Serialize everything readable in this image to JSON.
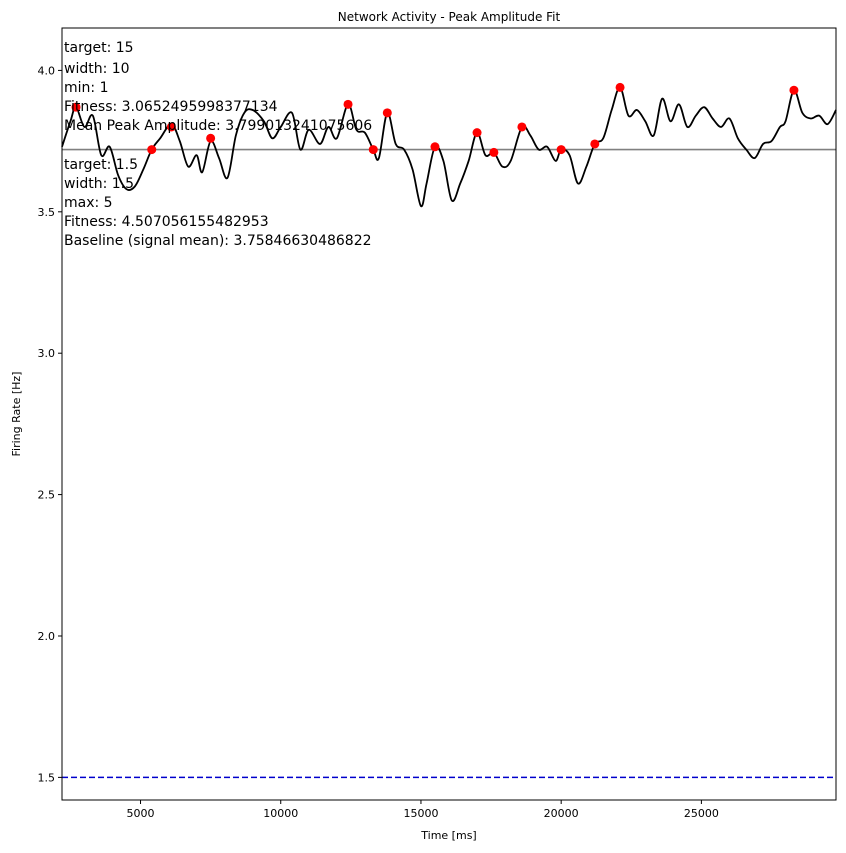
{
  "chart_data": {
    "type": "line",
    "title": "Network Activity - Peak Amplitude Fit",
    "xlabel": "Time [ms]",
    "ylabel": "Firing Rate [Hz]",
    "xlim": [
      2200,
      29800
    ],
    "ylim": [
      1.42,
      4.15
    ],
    "xticks": [
      5000,
      10000,
      15000,
      20000,
      25000
    ],
    "yticks": [
      1.5,
      2.0,
      2.5,
      3.0,
      3.5,
      4.0
    ],
    "grid": false,
    "series": [
      {
        "x": [
          2200,
          2500,
          2700,
          3000,
          3300,
          3600,
          3900,
          4200,
          4500,
          4800,
          5100,
          5400,
          5700,
          6100,
          6400,
          6700,
          7000,
          7200,
          7500,
          7800,
          8100,
          8400,
          8700,
          9000,
          9400,
          9700,
          10000,
          10400,
          10700,
          11000,
          11400,
          11700,
          12000,
          12400,
          12700,
          13000,
          13300,
          13500,
          13800,
          14100,
          14400,
          14700,
          15000,
          15200,
          15500,
          15800,
          16100,
          16400,
          16700,
          17000,
          17300,
          17600,
          17900,
          18200,
          18600,
          18900,
          19200,
          19500,
          19800,
          20000,
          20300,
          20600,
          20900,
          21200,
          21500,
          21800,
          22100,
          22400,
          22700,
          23000,
          23300,
          23600,
          23900,
          24200,
          24500,
          24800,
          25100,
          25400,
          25700,
          26000,
          26300,
          26600,
          26900,
          27200,
          27500,
          27800,
          28000,
          28300,
          28600,
          28900,
          29200,
          29500,
          29800
        ],
        "values": [
          3.73,
          3.82,
          3.87,
          3.8,
          3.84,
          3.7,
          3.73,
          3.63,
          3.58,
          3.59,
          3.65,
          3.72,
          3.76,
          3.81,
          3.75,
          3.66,
          3.7,
          3.64,
          3.75,
          3.69,
          3.62,
          3.77,
          3.85,
          3.86,
          3.82,
          3.76,
          3.8,
          3.85,
          3.72,
          3.79,
          3.74,
          3.8,
          3.76,
          3.88,
          3.79,
          3.78,
          3.72,
          3.69,
          3.85,
          3.74,
          3.72,
          3.65,
          3.52,
          3.6,
          3.73,
          3.68,
          3.54,
          3.6,
          3.68,
          3.78,
          3.7,
          3.71,
          3.66,
          3.68,
          3.8,
          3.77,
          3.72,
          3.73,
          3.68,
          3.72,
          3.7,
          3.6,
          3.66,
          3.74,
          3.76,
          3.86,
          3.94,
          3.84,
          3.86,
          3.82,
          3.77,
          3.9,
          3.82,
          3.88,
          3.8,
          3.84,
          3.87,
          3.83,
          3.8,
          3.83,
          3.76,
          3.72,
          3.69,
          3.74,
          3.75,
          3.8,
          3.82,
          3.93,
          3.85,
          3.83,
          3.84,
          3.81,
          3.86
        ],
        "color": "#000000"
      }
    ],
    "peaks": {
      "x": [
        2700,
        5400,
        6100,
        7500,
        12400,
        13300,
        13800,
        15500,
        17000,
        17600,
        18600,
        20000,
        21200,
        22100,
        28300
      ],
      "values": [
        3.87,
        3.72,
        3.8,
        3.76,
        3.88,
        3.72,
        3.85,
        3.73,
        3.78,
        3.71,
        3.8,
        3.72,
        3.74,
        3.94,
        3.93
      ],
      "color": "#ff0000"
    },
    "hlines": [
      {
        "y": 3.72,
        "color": "#808080",
        "style": "solid"
      },
      {
        "y": 1.5,
        "color": "#0000cc",
        "style": "dashed"
      }
    ],
    "annotations": {
      "upper": [
        "target: 15",
        "width: 10",
        "min: 1",
        "Fitness: 3.0652495998377134",
        "Mean Peak Amplitude: 3.799013241075606"
      ],
      "lower": [
        "target: 1.5",
        "width: 1.5",
        "max: 5",
        "Fitness: 4.507056155482953",
        "Baseline (signal mean): 3.75846630486822"
      ]
    }
  }
}
